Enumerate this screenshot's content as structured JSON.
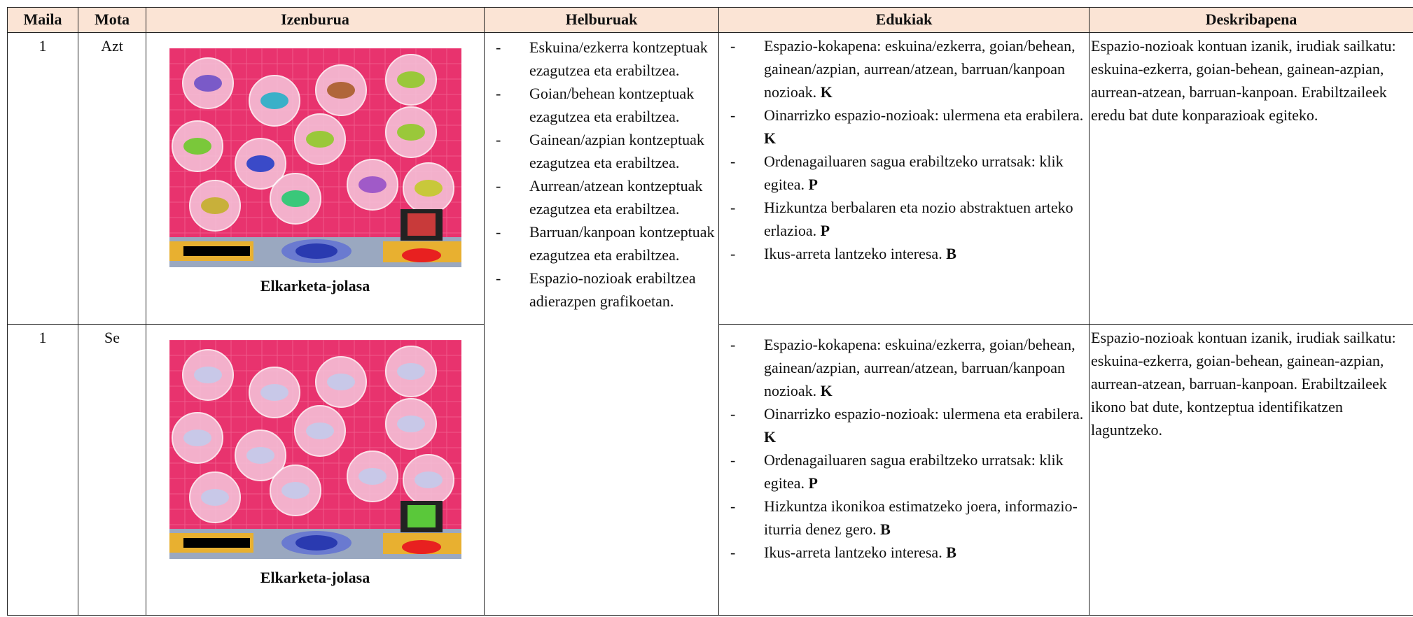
{
  "table": {
    "header": [
      "Maila",
      "Mota",
      "Izenburua",
      "Helburuak",
      "Edukiak",
      "Deskribapena"
    ],
    "helburuak": [
      "Eskuina/ezkerra kontzeptuak ezagutzea eta erabiltzea.",
      "Goian/behean kontzeptuak ezagutzea eta erabiltzea.",
      "Gainean/azpian kontzeptuak ezagutzea eta erabiltzea.",
      "Aurrean/atzean kontzeptuak ezagutzea eta erabiltzea.",
      "Barruan/kanpoan kontzeptuak ezagutzea eta erabiltzea.",
      "Espazio-nozioak erabiltzea adierazpen grafikoetan."
    ],
    "rows": [
      {
        "maila": "1",
        "mota": "Azt",
        "izenburua": "Elkarketa-jolasa",
        "edukiak": [
          {
            "text": "Espazio-kokapena: eskuina/ezkerra, goian/behean, gainean/azpian, aurrean/atzean, barruan/kanpoan nozioak.",
            "tag": "K"
          },
          {
            "text": "Oinarrizko espazio-nozioak: ulermena eta erabilera.",
            "tag": "K"
          },
          {
            "text": "Ordenagailuaren sagua erabiltzeko urratsak: klik egitea.",
            "tag": "P"
          },
          {
            "text": "Hizkuntza berbalaren eta nozio abstraktuen arteko erlazioa.",
            "tag": "P"
          },
          {
            "text": "Ikus-arreta lantzeko interesa.",
            "tag": "B"
          }
        ],
        "deskribapena": "Espazio-nozioak kontuan izanik, irudiak sailkatu: eskuina-ezkerra, goian-behean, gainean-azpian, aurrean-atzean, barruan-kanpoan. Erabiltzaileek eredu bat dute konparazioak egiteko."
      },
      {
        "maila": "1",
        "mota": "Se",
        "izenburua": "Elkarketa-jolasa",
        "edukiak": [
          {
            "text": "Espazio-kokapena: eskuina/ezkerra, goian/behean, gainean/azpian, aurrean/atzean, barruan/kanpoan nozioak.",
            "tag": "K"
          },
          {
            "text": "Oinarrizko espazio-nozioak: ulermena eta erabilera.",
            "tag": "K"
          },
          {
            "text": "Ordenagailuaren sagua erabiltzeko urratsak: klik egitea.",
            "tag": "P"
          },
          {
            "text": "Hizkuntza ikonikoa estimatzeko joera, informazio-iturria denez gero.",
            "tag": "B"
          },
          {
            "text": "Ikus-arreta lantzeko interesa.",
            "tag": "B"
          }
        ],
        "deskribapena": "Espazio-nozioak kontuan izanik, irudiak sailkatu: eskuina-ezkerra, goian-behean, gainean-azpian, aurrean-atzean, barruan-kanpoan. Erabiltzaileek ikono bat dute, kontzeptua identifikatzen laguntzeko."
      }
    ]
  }
}
